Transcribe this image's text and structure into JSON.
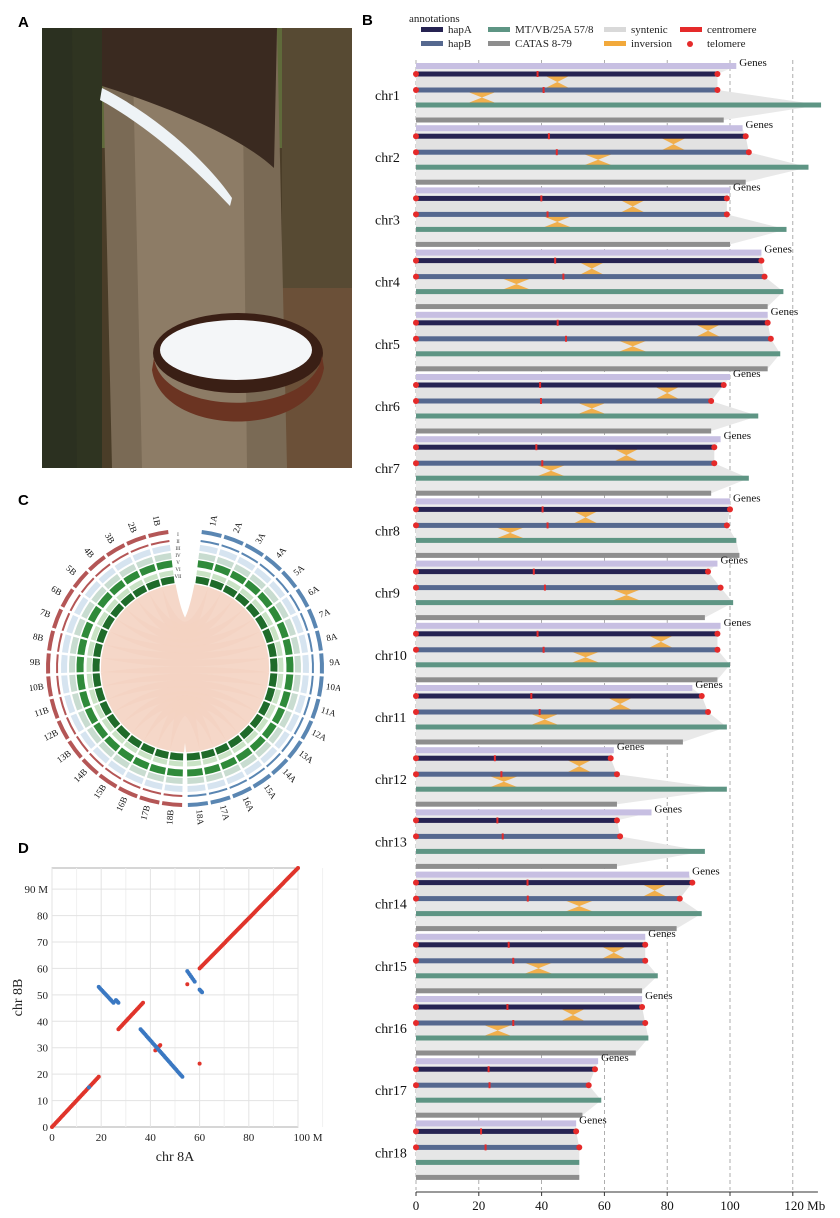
{
  "panels": {
    "a": "A",
    "b": "B",
    "c": "C",
    "d": "D"
  },
  "panelB": {
    "legend_title": "annotations",
    "legend": [
      {
        "label": "hapA",
        "color": "#262352"
      },
      {
        "label": "hapB",
        "color": "#55688f"
      },
      {
        "label": "MT/VB/25A 57/8",
        "color": "#5e9584"
      },
      {
        "label": "CATAS 8-79",
        "color": "#8e8e8e"
      },
      {
        "label": "syntenic",
        "color": "#d9d9d9"
      },
      {
        "label": "inversion",
        "color": "#f2a93b"
      },
      {
        "label": "centromere",
        "color": "#e52a2a"
      },
      {
        "label": "telomere",
        "color": "#e52a2a"
      }
    ],
    "genes_label": "Genes",
    "x_ticks": [
      0,
      20,
      40,
      60,
      80,
      100
    ],
    "x_last_tick": "120 Mb",
    "chromosomes": [
      {
        "name": "chr1",
        "genes": 102,
        "hapA": 96,
        "hapB": 96,
        "mt": 129,
        "catas": 98
      },
      {
        "name": "chr2",
        "genes": 104,
        "hapA": 105,
        "hapB": 106,
        "mt": 125,
        "catas": 105
      },
      {
        "name": "chr3",
        "genes": 100,
        "hapA": 99,
        "hapB": 99,
        "mt": 118,
        "catas": 100
      },
      {
        "name": "chr4",
        "genes": 110,
        "hapA": 110,
        "hapB": 111,
        "mt": 117,
        "catas": 112
      },
      {
        "name": "chr5",
        "genes": 112,
        "hapA": 112,
        "hapB": 113,
        "mt": 116,
        "catas": 112
      },
      {
        "name": "chr6",
        "genes": 100,
        "hapA": 98,
        "hapB": 94,
        "mt": 109,
        "catas": 94
      },
      {
        "name": "chr7",
        "genes": 97,
        "hapA": 95,
        "hapB": 95,
        "mt": 106,
        "catas": 94
      },
      {
        "name": "chr8",
        "genes": 100,
        "hapA": 100,
        "hapB": 99,
        "mt": 102,
        "catas": 103
      },
      {
        "name": "chr9",
        "genes": 96,
        "hapA": 93,
        "hapB": 97,
        "mt": 101,
        "catas": 92
      },
      {
        "name": "chr10",
        "genes": 97,
        "hapA": 96,
        "hapB": 96,
        "mt": 100,
        "catas": 96
      },
      {
        "name": "chr11",
        "genes": 88,
        "hapA": 91,
        "hapB": 93,
        "mt": 99,
        "catas": 85
      },
      {
        "name": "chr12",
        "genes": 63,
        "hapA": 62,
        "hapB": 64,
        "mt": 99,
        "catas": 64
      },
      {
        "name": "chr13",
        "genes": 75,
        "hapA": 64,
        "hapB": 65,
        "mt": 92,
        "catas": 64
      },
      {
        "name": "chr14",
        "genes": 87,
        "hapA": 88,
        "hapB": 84,
        "mt": 91,
        "catas": 83
      },
      {
        "name": "chr15",
        "genes": 73,
        "hapA": 73,
        "hapB": 73,
        "mt": 77,
        "catas": 72
      },
      {
        "name": "chr16",
        "genes": 72,
        "hapA": 72,
        "hapB": 73,
        "mt": 74,
        "catas": 70
      },
      {
        "name": "chr17",
        "genes": 58,
        "hapA": 57,
        "hapB": 55,
        "mt": 59,
        "catas": 53
      },
      {
        "name": "chr18",
        "genes": 51,
        "hapA": 51,
        "hapB": 52,
        "mt": 52,
        "catas": 52
      }
    ]
  },
  "panelC": {
    "outer_labels_A": [
      "1A",
      "2A",
      "3A",
      "4A",
      "5A",
      "6A",
      "7A",
      "8A",
      "9A",
      "10A",
      "11A",
      "12A",
      "13A",
      "14A",
      "15A",
      "16A",
      "17A",
      "18A"
    ],
    "outer_labels_B": [
      "1B",
      "2B",
      "3B",
      "4B",
      "5B",
      "6B",
      "7B",
      "8B",
      "9B",
      "10B",
      "11B",
      "12B",
      "13B",
      "14B",
      "15B",
      "16B",
      "17B",
      "18B"
    ],
    "track_labels": [
      "I",
      "II",
      "III",
      "IV",
      "V",
      "VI",
      "VII"
    ],
    "colorA": "#5a86b2",
    "colorB": "#b45656",
    "link_color": "#f4d3c2"
  },
  "chart_data": {
    "type": "scatter",
    "xlabel": "chr 8A",
    "ylabel": "chr 8B",
    "x_unit": "M",
    "y_unit": "M",
    "xlim": [
      0,
      100
    ],
    "ylim": [
      0,
      98
    ],
    "x_ticks": [
      0,
      20,
      40,
      60,
      80,
      100
    ],
    "y_ticks": [
      10,
      20,
      30,
      40,
      50,
      60,
      70,
      80,
      90
    ],
    "grid": true,
    "series": [
      {
        "color": "#e0342b",
        "segments": [
          [
            [
              0,
              0
            ],
            [
              19,
              19
            ]
          ],
          [
            [
              27,
              37
            ],
            [
              37,
              47
            ]
          ],
          [
            [
              42,
              29
            ],
            [
              44,
              31
            ]
          ],
          [
            [
              60,
              60
            ],
            [
              100,
              98
            ]
          ]
        ],
        "points": [
          [
            55,
            54
          ],
          [
            60,
            24
          ]
        ]
      },
      {
        "color": "#3a78c2",
        "segments": [
          [
            [
              19,
              53
            ],
            [
              25,
              47
            ]
          ],
          [
            [
              26,
              48
            ],
            [
              27,
              47
            ]
          ],
          [
            [
              36,
              37
            ],
            [
              53,
              19
            ]
          ],
          [
            [
              55,
              59
            ],
            [
              58,
              55
            ]
          ],
          [
            [
              60,
              52
            ],
            [
              61,
              51
            ]
          ]
        ],
        "points": [
          [
            15,
            15
          ]
        ]
      }
    ]
  }
}
